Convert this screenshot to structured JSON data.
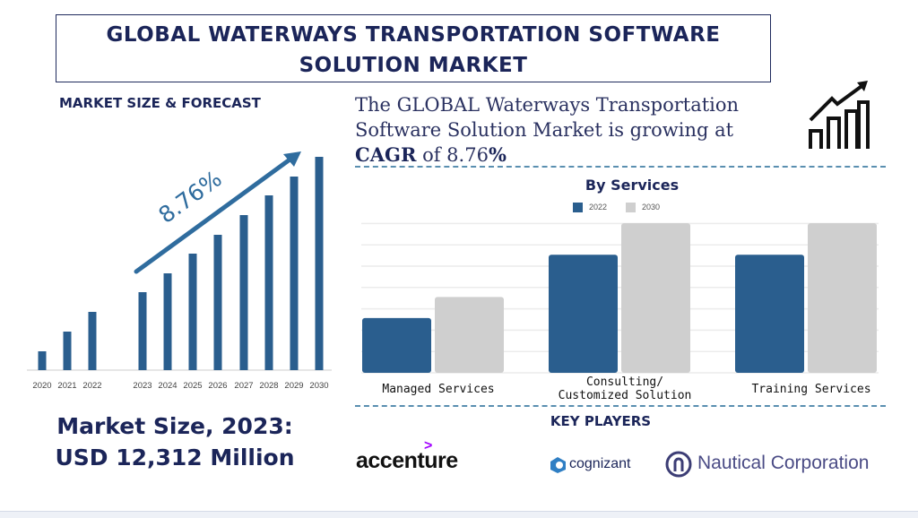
{
  "title": {
    "line1": "GLOBAL WATERWAYS TRANSPORTATION SOFTWARE",
    "line2": "SOLUTION MARKET"
  },
  "left_panel": {
    "heading": "MARKET SIZE & FORECAST",
    "cagr_label": "8.76%",
    "market_size_line1": "Market Size, 2023:",
    "market_size_line2": "USD 12,312 Million"
  },
  "summary": {
    "text_pre": "The GLOBAL Waterways Transportation Software Solution Market is growing at",
    "cagr_word": "CAGR",
    "of": "of 8.76",
    "percent": "%"
  },
  "key_players": {
    "heading": "KEY PLAYERS",
    "logos": [
      "accenture",
      "cognizant",
      "Nautical Corporation"
    ]
  },
  "colors": {
    "primary": "#2a5e8e",
    "secondary": "#cfcfcf",
    "navy": "#1b2559"
  },
  "chart_data": [
    {
      "type": "bar",
      "title": "MARKET SIZE & FORECAST",
      "categories": [
        "2020",
        "2021",
        "2022",
        "2023",
        "2024",
        "2025",
        "2026",
        "2027",
        "2028",
        "2029",
        "2030"
      ],
      "values": [
        21,
        43,
        65,
        87,
        108,
        130,
        151,
        173,
        195,
        216,
        238
      ],
      "annotation": "8.76%",
      "grid": false,
      "color": "#2a5e8e"
    },
    {
      "type": "bar",
      "title": "By Services",
      "categories": [
        "Managed Services",
        "Consulting/\nCustomized Solution",
        "Training Services"
      ],
      "category_lines": [
        [
          "Managed Services"
        ],
        [
          "Consulting/",
          "Customized Solution"
        ],
        [
          "Training Services"
        ]
      ],
      "series": [
        {
          "name": "2022",
          "values": [
            2.6,
            5.6,
            5.6
          ],
          "color": "#2a5e8e"
        },
        {
          "name": "2030",
          "values": [
            3.6,
            7.1,
            7.1
          ],
          "color": "#cfcfcf"
        }
      ],
      "ylim": [
        0,
        7.1
      ],
      "grid": true,
      "legend": "top"
    }
  ]
}
